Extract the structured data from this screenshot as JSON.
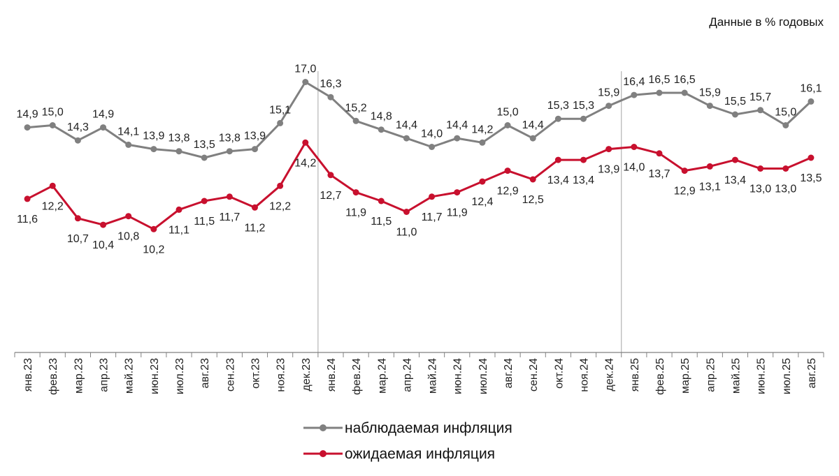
{
  "note": "Данные в % годовых",
  "chart_data": {
    "type": "line",
    "categories": [
      "янв.23",
      "фев.23",
      "мар.23",
      "апр.23",
      "май.23",
      "июн.23",
      "июл.23",
      "авг.23",
      "сен.23",
      "окт.23",
      "ноя.23",
      "дек.23",
      "янв.24",
      "фев.24",
      "мар.24",
      "апр.24",
      "май.24",
      "июн.24",
      "июл.24",
      "авг.24",
      "сен.24",
      "окт.24",
      "ноя.24",
      "дек.24",
      "янв.25",
      "фев.25",
      "мар.25",
      "апр.25",
      "май.25",
      "июн.25",
      "июл.25",
      "авг.25"
    ],
    "series": [
      {
        "name": "наблюдаемая инфляция",
        "color": "#808080",
        "values": [
          14.9,
          15.0,
          14.3,
          14.9,
          14.1,
          13.9,
          13.8,
          13.5,
          13.8,
          13.9,
          15.1,
          17.0,
          16.3,
          15.2,
          14.8,
          14.4,
          14.0,
          14.4,
          14.2,
          15.0,
          14.4,
          15.3,
          15.3,
          15.9,
          16.4,
          16.5,
          16.5,
          15.9,
          15.5,
          15.7,
          15.0,
          16.1
        ],
        "labels": [
          "14,9",
          "15,0",
          "14,3",
          "14,9",
          "14,1",
          "13,9",
          "13,8",
          "13,5",
          "13,8",
          "13,9",
          "15,1",
          "17,0",
          "16,3",
          "15,2",
          "14,8",
          "14,4",
          "14,0",
          "14,4",
          "14,2",
          "15,0",
          "14,4",
          "15,3",
          "15,3",
          "15,9",
          "16,4",
          "16,5",
          "16,5",
          "15,9",
          "15,5",
          "15,7",
          "15,0",
          "16,1"
        ]
      },
      {
        "name": "ожидаемая инфляция",
        "color": "#c8102e",
        "values": [
          11.6,
          12.2,
          10.7,
          10.4,
          10.8,
          10.2,
          11.1,
          11.5,
          11.7,
          11.2,
          12.2,
          14.2,
          12.7,
          11.9,
          11.5,
          11.0,
          11.7,
          11.9,
          12.4,
          12.9,
          12.5,
          13.4,
          13.4,
          13.9,
          14.0,
          13.7,
          12.9,
          13.1,
          13.4,
          13.0,
          13.0,
          13.5
        ],
        "labels": [
          "11,6",
          "12,2",
          "10,7",
          "10,4",
          "10,8",
          "10,2",
          "11,1",
          "11,5",
          "11,7",
          "11,2",
          "12,2",
          "14,2",
          "12,7",
          "11,9",
          "11,5",
          "11,0",
          "11,7",
          "11,9",
          "12,4",
          "12,9",
          "12,5",
          "13,4",
          "13,4",
          "13,9",
          "14,0",
          "13,7",
          "12,9",
          "13,1",
          "13,4",
          "13,0",
          "13,0",
          "13,5"
        ]
      }
    ],
    "separators_after": [
      "дек.23",
      "дек.24"
    ],
    "ylim": [
      4.5,
      19.5
    ],
    "grid": false,
    "legend_position": "bottom-center"
  }
}
